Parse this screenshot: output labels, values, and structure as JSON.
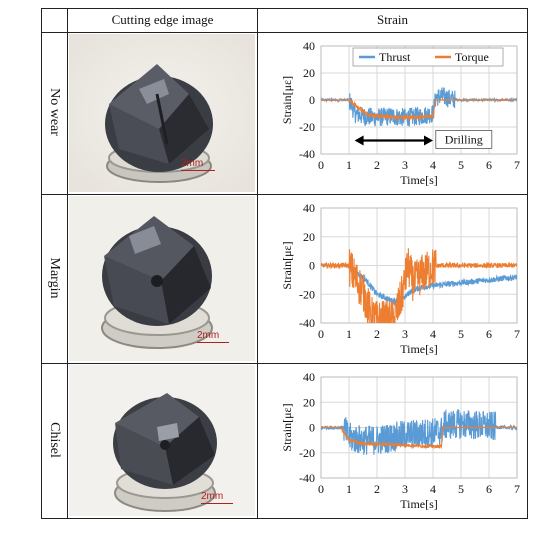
{
  "table": {
    "col_headers": [
      "Cutting edge image",
      "Strain"
    ],
    "rows": [
      {
        "label": "No wear",
        "scale": "2mm"
      },
      {
        "label": "Margin",
        "scale": "2mm"
      },
      {
        "label": "Chisel",
        "scale": "2mm"
      }
    ]
  },
  "colors": {
    "thrust": "#5b9bd5",
    "torque": "#ed7d31",
    "red_label": "#b02020"
  },
  "chart_data": [
    {
      "type": "line",
      "xlabel": "Time[s]",
      "ylabel": "Strain[με]",
      "xlim": [
        0,
        7
      ],
      "ylim": [
        -40,
        40
      ],
      "xticks": [
        0,
        1,
        2,
        3,
        4,
        5,
        6,
        7
      ],
      "yticks": [
        40,
        20,
        0,
        -20,
        -40
      ],
      "legend": [
        "Thrust",
        "Torque"
      ],
      "annotation": "Drilling",
      "arrow_span": [
        1.2,
        4.0
      ],
      "series": [
        {
          "name": "Thrust",
          "x": [
            0,
            1.0,
            1.1,
            1.2,
            1.5,
            2.0,
            2.5,
            3.0,
            3.5,
            4.0,
            4.1,
            4.3,
            4.6,
            5.0,
            6.0,
            7.0
          ],
          "y": [
            0,
            0,
            -4,
            -10,
            -12,
            -13,
            -12,
            -13,
            -12,
            -10,
            2,
            3,
            1,
            0,
            0,
            0
          ],
          "noise": 7
        },
        {
          "name": "Torque",
          "x": [
            0,
            1.0,
            1.3,
            1.6,
            2.0,
            3.0,
            4.0,
            4.1,
            5.0,
            7.0
          ],
          "y": [
            0,
            0,
            -5,
            -10,
            -12,
            -13,
            -12,
            0,
            0,
            0
          ],
          "noise": 1.5
        }
      ]
    },
    {
      "type": "line",
      "xlabel": "Time[s]",
      "ylabel": "Strain[με]",
      "xlim": [
        0,
        7
      ],
      "ylim": [
        -40,
        40
      ],
      "xticks": [
        0,
        1,
        2,
        3,
        4,
        5,
        6,
        7
      ],
      "yticks": [
        40,
        20,
        0,
        -20,
        -40
      ],
      "series": [
        {
          "name": "Thrust",
          "x": [
            0,
            1.0,
            1.3,
            1.6,
            2.0,
            2.6,
            3.0,
            3.2,
            3.6,
            4.0,
            5.0,
            6.0,
            7.0
          ],
          "y": [
            0,
            0,
            -5,
            -10,
            -20,
            -25,
            -22,
            -18,
            -15,
            -14,
            -12,
            -10,
            -8
          ],
          "noise": 2
        },
        {
          "name": "Torque",
          "x": [
            0,
            1.0,
            1.2,
            1.5,
            1.8,
            2.0,
            2.3,
            2.6,
            2.9,
            3.1,
            3.3,
            3.6,
            4.0,
            4.2,
            7.0
          ],
          "y": [
            0,
            0,
            -8,
            -18,
            -35,
            -38,
            -38,
            -38,
            -20,
            0,
            -12,
            -6,
            -1,
            0,
            0
          ],
          "noise": 14
        }
      ]
    },
    {
      "type": "line",
      "xlabel": "Time[s]",
      "ylabel": "Strain[με]",
      "xlim": [
        0,
        7
      ],
      "ylim": [
        -40,
        40
      ],
      "xticks": [
        0,
        1,
        2,
        3,
        4,
        5,
        6,
        7
      ],
      "yticks": [
        40,
        20,
        0,
        -20,
        -40
      ],
      "series": [
        {
          "name": "Thrust",
          "x": [
            0,
            0.7,
            0.8,
            1.0,
            1.5,
            2.0,
            2.5,
            3.0,
            3.5,
            4.0,
            4.3,
            4.4,
            5.0,
            5.5,
            6.0,
            6.5,
            6.6,
            7.0
          ],
          "y": [
            0,
            0,
            0,
            -8,
            -10,
            -10,
            -8,
            -6,
            -5,
            -4,
            -3,
            2,
            3,
            2,
            1,
            0,
            0,
            0
          ],
          "noise": 12
        },
        {
          "name": "Torque",
          "x": [
            0,
            0.7,
            1.0,
            1.5,
            2.0,
            3.0,
            4.0,
            4.3,
            4.35,
            5.0,
            6.0,
            7.0
          ],
          "y": [
            0,
            0,
            -10,
            -13,
            -13,
            -14,
            -15,
            -15,
            0,
            0,
            0,
            0
          ],
          "noise": 1.2
        }
      ]
    }
  ]
}
